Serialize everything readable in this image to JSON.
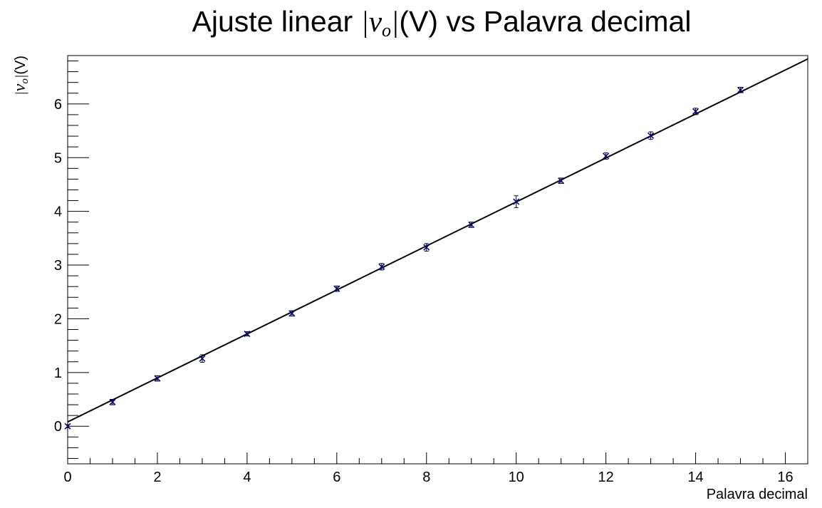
{
  "chart_data": {
    "type": "scatter",
    "title": {
      "prefix": "Ajuste linear ",
      "bar_left": "|",
      "var": "v",
      "sub": "o",
      "bar_right": "|",
      "unit": "(V)",
      "suffix": " vs Palavra decimal"
    },
    "xlabel": "Palavra decimal",
    "ylabel": {
      "bar_left": "|",
      "var": "v",
      "sub": "o",
      "bar_right": "|",
      "unit": "(V)"
    },
    "xlim": [
      0,
      16.5
    ],
    "ylim": [
      -0.7,
      6.9
    ],
    "xticks": [
      0,
      2,
      4,
      6,
      8,
      10,
      12,
      14,
      16
    ],
    "yticks": [
      0,
      1,
      2,
      3,
      4,
      5,
      6
    ],
    "grid": false,
    "series": [
      {
        "kind": "points-with-errors",
        "color": "#000080",
        "x": [
          0,
          1,
          2,
          3,
          4,
          5,
          6,
          7,
          8,
          9,
          10,
          11,
          12,
          13,
          14,
          15
        ],
        "y": [
          0.0,
          0.45,
          0.89,
          1.26,
          1.72,
          2.1,
          2.56,
          2.97,
          3.33,
          3.75,
          4.18,
          4.57,
          5.03,
          5.41,
          5.86,
          6.26
        ],
        "yerr": [
          0.03,
          0.05,
          0.05,
          0.07,
          0.04,
          0.05,
          0.05,
          0.06,
          0.07,
          0.05,
          0.11,
          0.05,
          0.06,
          0.07,
          0.06,
          0.05
        ]
      },
      {
        "kind": "fit-line",
        "color": "#000000",
        "slope": 0.4095,
        "intercept": 0.08
      }
    ]
  }
}
